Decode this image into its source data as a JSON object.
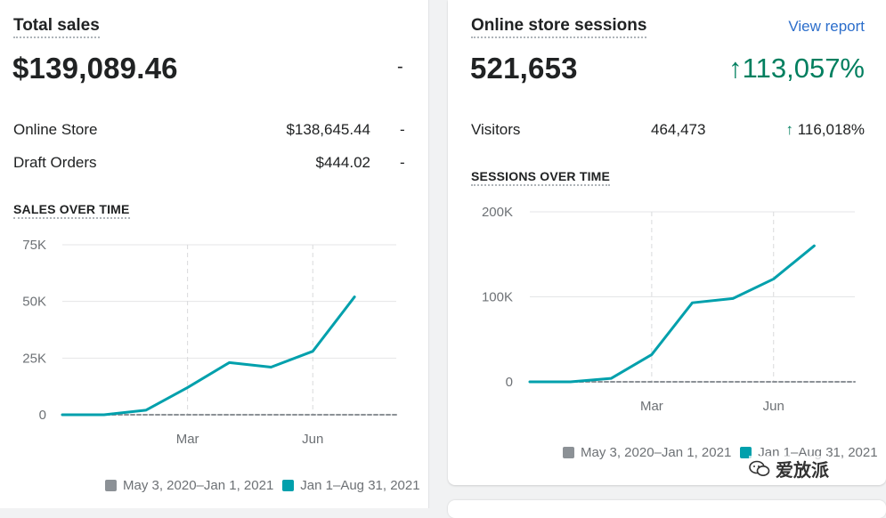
{
  "total_sales": {
    "title": "Total sales",
    "value": "$139,089.46",
    "change": "-",
    "rows": [
      {
        "label": "Online Store",
        "value": "$138,645.44",
        "change": "-"
      },
      {
        "label": "Draft Orders",
        "value": "$444.02",
        "change": "-"
      }
    ],
    "chart_heading": "SALES OVER TIME"
  },
  "sessions": {
    "title": "Online store sessions",
    "view_report": "View report",
    "value": "521,653",
    "change": "113,057%",
    "visitors_label": "Visitors",
    "visitors_value": "464,473",
    "visitors_change": "116,018%",
    "chart_heading": "SESSIONS OVER TIME"
  },
  "legend": {
    "previous": "May 3, 2020–Jan 1, 2021",
    "current": "Jan 1–Aug 31, 2021",
    "previous_color": "#8c9196",
    "current_color": "#00a0ac"
  },
  "watermark": "爱放派",
  "chart_data": [
    {
      "type": "line",
      "title": "SALES OVER TIME",
      "x_ticks": [
        "Mar",
        "Jun"
      ],
      "y_ticks": [
        "0",
        "25K",
        "50K",
        "75K"
      ],
      "ylim": [
        0,
        75000
      ],
      "xlim": [
        0,
        8
      ],
      "x_tick_positions": [
        3,
        6
      ],
      "series": [
        {
          "name": "Jan 1–Aug 31, 2021",
          "color": "#00a0ac",
          "x": [
            0,
            1,
            2,
            3,
            4,
            5,
            6,
            7
          ],
          "y": [
            0,
            0,
            2000,
            12000,
            23000,
            21000,
            28000,
            52000
          ]
        },
        {
          "name": "May 3, 2020–Jan 1, 2021",
          "color": "#8c9196",
          "dashed": true,
          "x": [
            0,
            8
          ],
          "y": [
            0,
            0
          ]
        }
      ]
    },
    {
      "type": "line",
      "title": "SESSIONS OVER TIME",
      "x_ticks": [
        "Mar",
        "Jun"
      ],
      "y_ticks": [
        "0",
        "100K",
        "200K"
      ],
      "ylim": [
        0,
        200000
      ],
      "xlim": [
        0,
        8
      ],
      "x_tick_positions": [
        3,
        6
      ],
      "series": [
        {
          "name": "Jan 1–Aug 31, 2021",
          "color": "#00a0ac",
          "x": [
            0,
            1,
            2,
            3,
            4,
            5,
            6,
            7
          ],
          "y": [
            0,
            0,
            4000,
            32000,
            93000,
            98000,
            121000,
            160000
          ]
        },
        {
          "name": "May 3, 2020–Jan 1, 2021",
          "color": "#8c9196",
          "dashed": true,
          "x": [
            0,
            8
          ],
          "y": [
            0,
            0
          ]
        }
      ]
    }
  ]
}
